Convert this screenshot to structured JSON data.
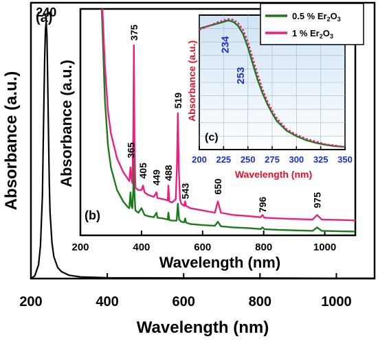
{
  "figure": {
    "panel_a_label": "(a)",
    "panel_b_label": "(b)",
    "panel_c_label": "(c)",
    "legend": [
      {
        "name_prefix": "0.5 % Er",
        "sub": "2",
        "mid": "O",
        "sub2": "3",
        "color": "#1a7a1a"
      },
      {
        "name_prefix": "1 % Er",
        "sub": "2",
        "mid": "O",
        "sub2": "3",
        "color": "#ee1e7e"
      }
    ]
  },
  "chart_data": [
    {
      "id": "main",
      "type": "line",
      "xlabel": "Wavelength (nm)",
      "ylabel": "Absorbance (a.u.)",
      "xlim": [
        200,
        1100
      ],
      "xticks": [
        200,
        400,
        600,
        800,
        1000
      ],
      "ylim": [
        0,
        1.0
      ],
      "annotation": {
        "label": "240",
        "x": 240,
        "y": 0.93
      },
      "series": [
        {
          "color": "#000000",
          "x": [
            200,
            210,
            220,
            225,
            230,
            233,
            236,
            238,
            240,
            242,
            244,
            246,
            248,
            250,
            255,
            260,
            270,
            280,
            300,
            330,
            400,
            600,
            800,
            1000,
            1100
          ],
          "y": [
            0.0,
            0.01,
            0.05,
            0.12,
            0.3,
            0.55,
            0.8,
            0.9,
            0.93,
            0.88,
            0.72,
            0.52,
            0.35,
            0.24,
            0.13,
            0.08,
            0.04,
            0.025,
            0.012,
            0.006,
            0.003,
            0.002,
            0.002,
            0.001,
            0.001
          ]
        }
      ]
    },
    {
      "id": "inset_b",
      "type": "line",
      "xlabel": "Wavelength (nm)",
      "ylabel": "Absorbance (a.u.)",
      "xlim": [
        200,
        1100
      ],
      "xticks": [
        200,
        400,
        600,
        800,
        1000
      ],
      "ylim": [
        0,
        1.0
      ],
      "peak_labels": [
        "365",
        "375",
        "405",
        "449",
        "488",
        "519",
        "543",
        "650",
        "796",
        "975"
      ],
      "peak_positions": [
        {
          "x": 365,
          "y": 0.34
        },
        {
          "x": 375,
          "y": 0.86
        },
        {
          "x": 405,
          "y": 0.25
        },
        {
          "x": 449,
          "y": 0.22
        },
        {
          "x": 488,
          "y": 0.24
        },
        {
          "x": 519,
          "y": 0.56
        },
        {
          "x": 543,
          "y": 0.16
        },
        {
          "x": 650,
          "y": 0.18
        },
        {
          "x": 796,
          "y": 0.1
        },
        {
          "x": 975,
          "y": 0.12
        }
      ],
      "series": [
        {
          "name": "0.5 % Er2O3",
          "color": "#1a7a1a",
          "x": [
            270,
            280,
            290,
            300,
            320,
            340,
            355,
            360,
            364,
            367,
            370,
            373,
            375,
            377,
            380,
            390,
            400,
            410,
            420,
            440,
            449,
            452,
            470,
            486,
            488,
            491,
            500,
            515,
            519,
            523,
            530,
            540,
            543,
            546,
            560,
            600,
            640,
            650,
            660,
            700,
            750,
            790,
            796,
            802,
            850,
            900,
            960,
            975,
            990,
            1050,
            1100
          ],
          "y": [
            1.0,
            0.6,
            0.4,
            0.3,
            0.2,
            0.15,
            0.125,
            0.12,
            0.19,
            0.13,
            0.12,
            0.2,
            0.34,
            0.18,
            0.11,
            0.1,
            0.12,
            0.09,
            0.085,
            0.08,
            0.1,
            0.078,
            0.075,
            0.07,
            0.1,
            0.068,
            0.065,
            0.065,
            0.14,
            0.07,
            0.06,
            0.058,
            0.075,
            0.056,
            0.05,
            0.045,
            0.042,
            0.06,
            0.04,
            0.035,
            0.032,
            0.028,
            0.035,
            0.027,
            0.024,
            0.022,
            0.02,
            0.035,
            0.02,
            0.018,
            0.017
          ]
        },
        {
          "name": "1 % Er2O3",
          "color": "#ee1e7e",
          "x": [
            272,
            280,
            290,
            300,
            320,
            340,
            355,
            360,
            364,
            367,
            370,
            373,
            375,
            377,
            380,
            390,
            400,
            405,
            410,
            420,
            440,
            449,
            452,
            470,
            486,
            488,
            491,
            500,
            512,
            516,
            519,
            522,
            526,
            530,
            540,
            543,
            546,
            560,
            600,
            640,
            650,
            660,
            700,
            750,
            790,
            796,
            802,
            850,
            900,
            960,
            975,
            990,
            1050,
            1100
          ],
          "y": [
            1.0,
            0.75,
            0.55,
            0.45,
            0.34,
            0.28,
            0.25,
            0.24,
            0.3,
            0.25,
            0.23,
            0.45,
            0.84,
            0.4,
            0.21,
            0.2,
            0.2,
            0.22,
            0.19,
            0.18,
            0.17,
            0.19,
            0.165,
            0.16,
            0.155,
            0.22,
            0.15,
            0.145,
            0.16,
            0.3,
            0.54,
            0.3,
            0.16,
            0.14,
            0.13,
            0.15,
            0.13,
            0.12,
            0.11,
            0.1,
            0.15,
            0.1,
            0.09,
            0.085,
            0.08,
            0.09,
            0.078,
            0.075,
            0.072,
            0.07,
            0.09,
            0.07,
            0.068,
            0.066
          ]
        }
      ]
    },
    {
      "id": "inset_c",
      "type": "line",
      "xlabel": "Wavelength (nm)",
      "ylabel": "Absorbance (a.u.)",
      "xlim": [
        200,
        350
      ],
      "xticks": [
        200,
        225,
        250,
        275,
        300,
        325,
        350
      ],
      "ylim": [
        0,
        1.0
      ],
      "grid": true,
      "annotations": [
        {
          "label": "234",
          "x": 230,
          "y": 0.78
        },
        {
          "label": "253",
          "x": 246,
          "y": 0.55
        }
      ],
      "series": [
        {
          "name": "0.5 % Er2O3",
          "color": "#1a7a1a",
          "x": [
            200,
            210,
            220,
            230,
            235,
            240,
            245,
            250,
            255,
            260,
            265,
            270,
            275,
            280,
            290,
            300,
            310,
            320,
            330,
            340,
            350
          ],
          "y": [
            0.9,
            0.92,
            0.94,
            0.96,
            0.95,
            0.92,
            0.86,
            0.76,
            0.64,
            0.52,
            0.42,
            0.34,
            0.27,
            0.21,
            0.14,
            0.1,
            0.07,
            0.05,
            0.035,
            0.025,
            0.02
          ]
        },
        {
          "name": "1 % Er2O3",
          "color": "#ee1e7e",
          "x": [
            200,
            210,
            220,
            230,
            235,
            240,
            245,
            250,
            255,
            260,
            265,
            270,
            275,
            280,
            290,
            300,
            310,
            320,
            330,
            340,
            350
          ],
          "y": [
            0.89,
            0.92,
            0.95,
            0.97,
            0.965,
            0.94,
            0.89,
            0.8,
            0.68,
            0.56,
            0.45,
            0.36,
            0.29,
            0.23,
            0.15,
            0.11,
            0.08,
            0.06,
            0.04,
            0.03,
            0.02
          ]
        }
      ]
    }
  ]
}
